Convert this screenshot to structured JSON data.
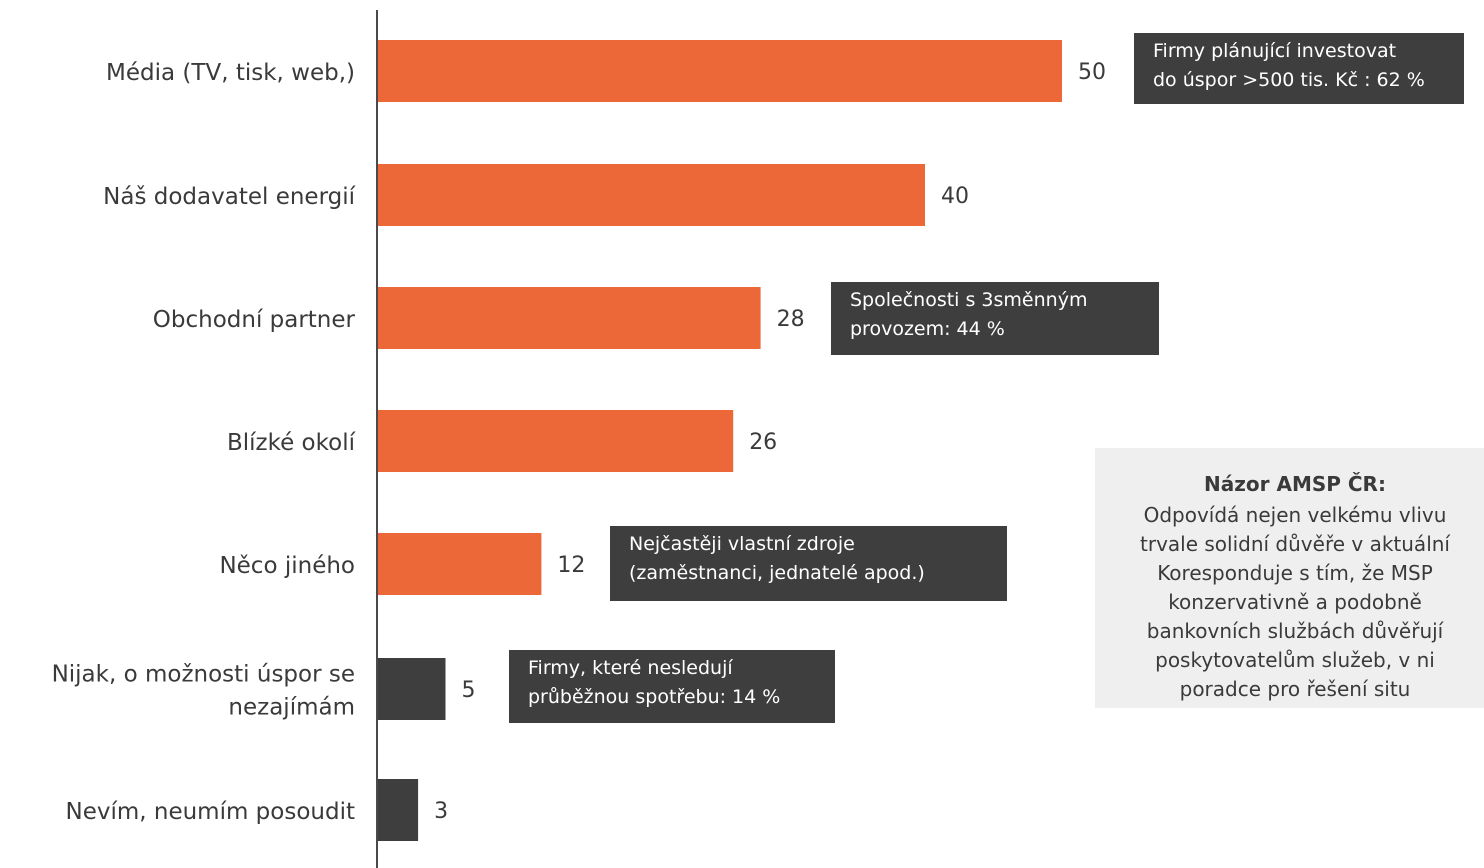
{
  "chart_data": {
    "type": "bar",
    "orientation": "horizontal",
    "categories": [
      "Média (TV, tisk, web,)",
      "Náš dodavatel energií",
      "Obchodní partner",
      "Blízké okolí",
      "Něco jiného",
      "Nijak, o možnosti úspor se nezajímám",
      "Nevím, neumím posoudit"
    ],
    "category_lines": [
      [
        "Média (TV, tisk, web,)"
      ],
      [
        "Náš dodavatel energií"
      ],
      [
        "Obchodní partner"
      ],
      [
        "Blízké okolí"
      ],
      [
        "Něco jiného"
      ],
      [
        "Nijak, o možnosti úspor se",
        "nezajímám"
      ],
      [
        "Nevím, neumím posoudit"
      ]
    ],
    "values": [
      50,
      40,
      28,
      26,
      12,
      5,
      3
    ],
    "bar_colors": [
      "#ec6839",
      "#ec6839",
      "#ec6839",
      "#ec6839",
      "#ec6839",
      "#3e3e3e",
      "#3e3e3e"
    ],
    "xlim": [
      0,
      50
    ],
    "grid": false,
    "legend": "none"
  },
  "callouts": [
    {
      "lines": [
        "Firmy plánující investovat",
        "do úspor >500 tis. Kč : 62 %"
      ]
    },
    {
      "lines": [
        "Společnosti s 3směnným",
        "provozem: 44 %"
      ]
    },
    {
      "lines": [
        "Nejčastěji vlastní zdroje",
        "(zaměstnanci, jednatelé apod.)"
      ]
    },
    {
      "lines": [
        "Firmy, které nesledují",
        "průběžnou spotřebu: 14 %"
      ]
    }
  ],
  "opinion": {
    "title": "Názor AMSP ČR:",
    "lines": [
      "Odpovídá nejen velkému vlivu",
      "trvale solidní důvěře v aktuální",
      "Koresponduje s tím, že MSP",
      "konzervativně a podobně",
      "bankovních službách důvěřují",
      "poskytovatelům služeb, v ni",
      "poradce pro řešení situ"
    ]
  },
  "colors": {
    "accent": "#ec6839",
    "dark": "#3e3e3e",
    "box_background": "#efefef"
  }
}
